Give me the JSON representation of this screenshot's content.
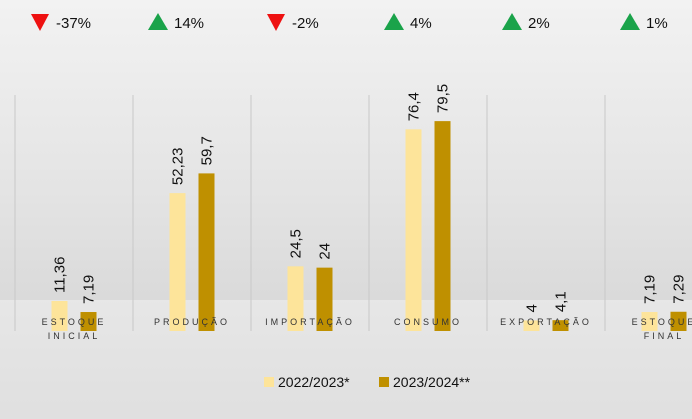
{
  "chart_data": {
    "type": "bar",
    "categories": [
      "ESTOQUE INICIAL",
      "PRODUÇÃO",
      "IMPORTAÇÃO",
      "CONSUMO",
      "EXPORTAÇÃO",
      "ESTOQUE FINAL"
    ],
    "series": [
      {
        "name": "2022/2023*",
        "color": "#fde49a",
        "values": [
          11.36,
          52.23,
          24.5,
          76.4,
          4,
          7.19
        ],
        "value_labels": [
          "11,36",
          "52,23",
          "24,5",
          "76,4",
          "4",
          "7,19"
        ]
      },
      {
        "name": "2023/2024**",
        "color": "#bf9000",
        "values": [
          7.19,
          59.7,
          24,
          79.5,
          4.1,
          7.29
        ],
        "value_labels": [
          "7,19",
          "59,7",
          "24",
          "79,5",
          "4,1",
          "7,29"
        ]
      }
    ],
    "changes": [
      -37,
      14,
      -2,
      4,
      2,
      1
    ],
    "change_labels": [
      "-37%",
      "14%",
      "-2%",
      "4%",
      "2%",
      "1%"
    ],
    "up_color": "#1aa34a",
    "down_color": "#ee1111"
  }
}
